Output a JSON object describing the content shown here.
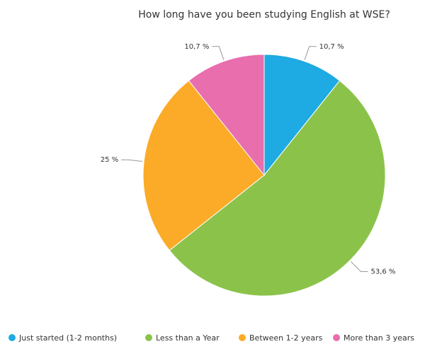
{
  "chart_data": {
    "type": "pie",
    "title": "How long have you been studying English at WSE?",
    "categories": [
      "Just started (1-2 months)",
      "Less than a Year",
      "Between 1-2 years",
      "More than 3 years"
    ],
    "values": [
      10.7,
      53.6,
      25,
      10.7
    ],
    "value_labels": [
      "10,7 %",
      "53,6 %",
      "25 %",
      "10,7 %"
    ],
    "colors": [
      "#1eaae2",
      "#8bc34a",
      "#fbab27",
      "#e86eae"
    ],
    "legend": "bottom"
  }
}
